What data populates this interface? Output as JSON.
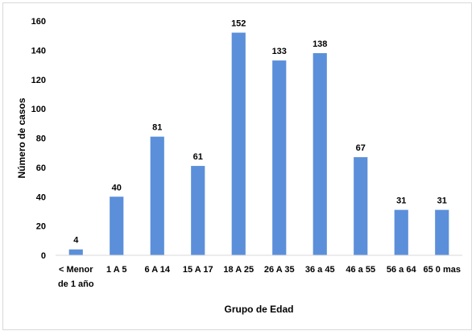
{
  "chart_data": {
    "type": "bar",
    "title": "",
    "xlabel": "Grupo de Edad",
    "ylabel": "Número de casos",
    "ylim": [
      0,
      160
    ],
    "yticks": [
      0,
      20,
      40,
      60,
      80,
      100,
      120,
      140,
      160
    ],
    "grid": false,
    "legend": "none",
    "bar_color": "#5b8fd9",
    "categories": [
      [
        "< Menor",
        "de 1 año"
      ],
      [
        "1 A 5"
      ],
      [
        "6 A 14"
      ],
      [
        "15 A 17"
      ],
      [
        "18  A 25"
      ],
      [
        "26 A 35"
      ],
      [
        "36 a 45"
      ],
      [
        "46 a 55"
      ],
      [
        "56 a 64"
      ],
      [
        "65 0 mas"
      ]
    ],
    "values": [
      4,
      40,
      81,
      61,
      152,
      133,
      138,
      67,
      31,
      31
    ]
  }
}
